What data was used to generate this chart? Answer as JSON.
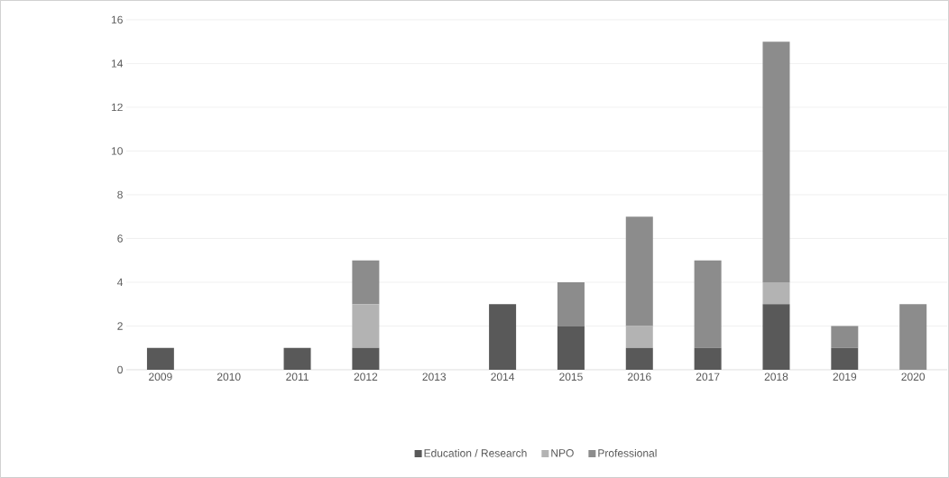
{
  "chart_data": {
    "type": "bar",
    "stacked": true,
    "categories": [
      "2009",
      "2010",
      "2011",
      "2012",
      "2013",
      "2014",
      "2015",
      "2016",
      "2017",
      "2018",
      "2019",
      "2020"
    ],
    "series": [
      {
        "name": "Education / Research",
        "color": "#595959",
        "values": [
          1,
          0,
          1,
          1,
          0,
          3,
          2,
          1,
          1,
          3,
          1,
          0
        ]
      },
      {
        "name": "NPO",
        "color": "#b3b3b3",
        "values": [
          0,
          0,
          0,
          2,
          0,
          0,
          0,
          1,
          0,
          1,
          0,
          0
        ]
      },
      {
        "name": "Professional",
        "color": "#8c8c8c",
        "values": [
          0,
          0,
          0,
          2,
          0,
          0,
          2,
          5,
          4,
          11,
          1,
          3
        ]
      }
    ],
    "ylim": [
      0,
      16
    ],
    "yticks": [
      0,
      2,
      4,
      6,
      8,
      10,
      12,
      14,
      16
    ],
    "grid": "y",
    "legend": "bottom"
  }
}
